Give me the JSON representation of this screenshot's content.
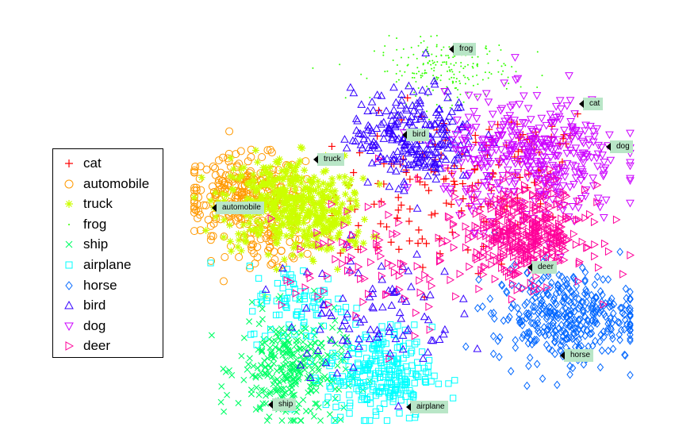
{
  "chart_data": {
    "type": "scatter",
    "title": "",
    "xlabel": "",
    "ylabel": "",
    "grid": false,
    "axes": "hidden",
    "legend": {
      "placement": "left",
      "entries": [
        {
          "name": "cat",
          "marker": "plus",
          "color": "#ff0000"
        },
        {
          "name": "automobile",
          "marker": "circle",
          "color": "#ff9900"
        },
        {
          "name": "truck",
          "marker": "asterisk",
          "color": "#ccff00"
        },
        {
          "name": "frog",
          "marker": "dot",
          "color": "#33ff00"
        },
        {
          "name": "ship",
          "marker": "x",
          "color": "#00ff66"
        },
        {
          "name": "airplane",
          "marker": "square",
          "color": "#00ffff"
        },
        {
          "name": "horse",
          "marker": "diamond",
          "color": "#0066ff"
        },
        {
          "name": "bird",
          "marker": "triangle-up",
          "color": "#3300ff"
        },
        {
          "name": "dog",
          "marker": "triangle-down",
          "color": "#cc00ff"
        },
        {
          "name": "deer",
          "marker": "triangle-right",
          "color": "#ff0099"
        }
      ]
    },
    "annotations": [
      {
        "text": "frog"
      },
      {
        "text": "cat"
      },
      {
        "text": "bird"
      },
      {
        "text": "dog"
      },
      {
        "text": "truck"
      },
      {
        "text": "automobile"
      },
      {
        "text": "deer"
      },
      {
        "text": "horse"
      },
      {
        "text": "ship"
      },
      {
        "text": "airplane"
      }
    ],
    "series": [
      {
        "name": "cat",
        "clusters": [
          {
            "cx": 0.56,
            "cy": 0.58,
            "sx": 0.12,
            "sy": 0.1,
            "n": 120
          },
          {
            "cx": 0.75,
            "cy": 0.7,
            "sx": 0.08,
            "sy": 0.06,
            "n": 40
          }
        ]
      },
      {
        "name": "automobile",
        "clusters": [
          {
            "cx": 0.11,
            "cy": 0.58,
            "sx": 0.07,
            "sy": 0.05,
            "n": 260
          },
          {
            "cx": 0.18,
            "cy": 0.46,
            "sx": 0.05,
            "sy": 0.04,
            "n": 60
          }
        ]
      },
      {
        "name": "truck",
        "clusters": [
          {
            "cx": 0.2,
            "cy": 0.56,
            "sx": 0.07,
            "sy": 0.06,
            "n": 360
          },
          {
            "cx": 0.3,
            "cy": 0.52,
            "sx": 0.05,
            "sy": 0.05,
            "n": 120
          }
        ]
      },
      {
        "name": "frog",
        "clusters": [
          {
            "cx": 0.57,
            "cy": 0.9,
            "sx": 0.08,
            "sy": 0.04,
            "n": 220
          }
        ]
      },
      {
        "name": "ship",
        "clusters": [
          {
            "cx": 0.22,
            "cy": 0.13,
            "sx": 0.06,
            "sy": 0.07,
            "n": 320
          }
        ]
      },
      {
        "name": "airplane",
        "clusters": [
          {
            "cx": 0.42,
            "cy": 0.12,
            "sx": 0.06,
            "sy": 0.06,
            "n": 260
          },
          {
            "cx": 0.24,
            "cy": 0.3,
            "sx": 0.06,
            "sy": 0.05,
            "n": 80
          }
        ]
      },
      {
        "name": "horse",
        "clusters": [
          {
            "cx": 0.84,
            "cy": 0.27,
            "sx": 0.08,
            "sy": 0.06,
            "n": 380
          }
        ]
      },
      {
        "name": "bird",
        "clusters": [
          {
            "cx": 0.5,
            "cy": 0.73,
            "sx": 0.07,
            "sy": 0.06,
            "n": 260
          },
          {
            "cx": 0.4,
            "cy": 0.28,
            "sx": 0.1,
            "sy": 0.08,
            "n": 90
          }
        ]
      },
      {
        "name": "dog",
        "clusters": [
          {
            "cx": 0.77,
            "cy": 0.67,
            "sx": 0.1,
            "sy": 0.08,
            "n": 400
          }
        ]
      },
      {
        "name": "deer",
        "clusters": [
          {
            "cx": 0.75,
            "cy": 0.48,
            "sx": 0.07,
            "sy": 0.06,
            "n": 420
          },
          {
            "cx": 0.4,
            "cy": 0.4,
            "sx": 0.1,
            "sy": 0.1,
            "n": 80
          }
        ]
      }
    ]
  }
}
